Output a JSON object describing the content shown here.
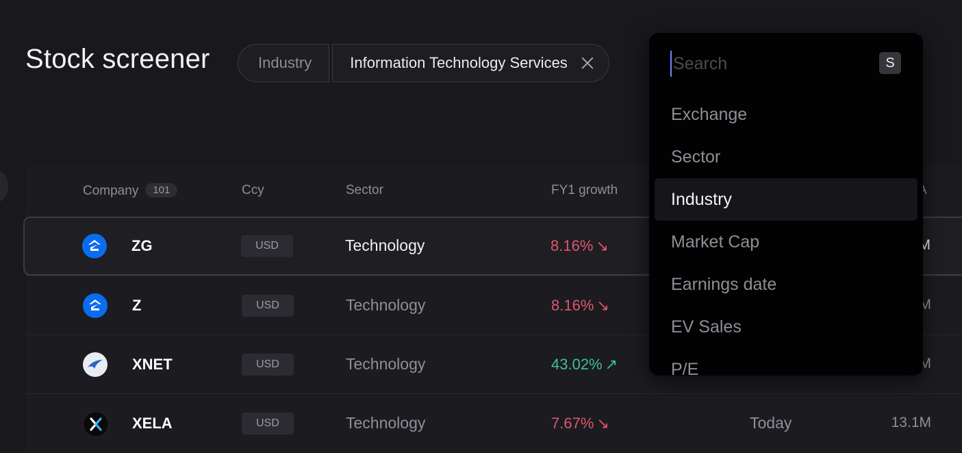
{
  "page": {
    "title": "Stock screener"
  },
  "filter": {
    "key": "Industry",
    "value": "Information Technology Services"
  },
  "table": {
    "headers": {
      "company": "Company",
      "company_count": "101",
      "ccy": "Ccy",
      "sector": "Sector",
      "growth": "FY1 growth",
      "partial": "A"
    },
    "rows": [
      {
        "logo": "zillow-logo",
        "ticker": "ZG",
        "ccy": "USD",
        "sector": "Technology",
        "growth": "8.16%",
        "trend": "down",
        "earnings": "",
        "mcap": "M",
        "selected": true
      },
      {
        "logo": "zillow-logo",
        "ticker": "Z",
        "ccy": "USD",
        "sector": "Technology",
        "growth": "8.16%",
        "trend": "down",
        "earnings": "",
        "mcap": "M"
      },
      {
        "logo": "xnet-logo",
        "ticker": "XNET",
        "ccy": "USD",
        "sector": "Technology",
        "growth": "43.02%",
        "trend": "up",
        "earnings": "",
        "mcap": "M"
      },
      {
        "logo": "xela-logo",
        "ticker": "XELA",
        "ccy": "USD",
        "sector": "Technology",
        "growth": "7.67%",
        "trend": "down",
        "earnings": "Today",
        "mcap": "13.1M"
      }
    ]
  },
  "dropdown": {
    "search_placeholder": "Search",
    "shortcut_key": "S",
    "items": [
      "Exchange",
      "Sector",
      "Industry",
      "Market Cap",
      "Earnings date",
      "EV Sales",
      "P/E"
    ],
    "active": "Industry"
  },
  "colors": {
    "down": "#e0566d",
    "up": "#3fc08f",
    "accent": "#0b6cf0"
  }
}
